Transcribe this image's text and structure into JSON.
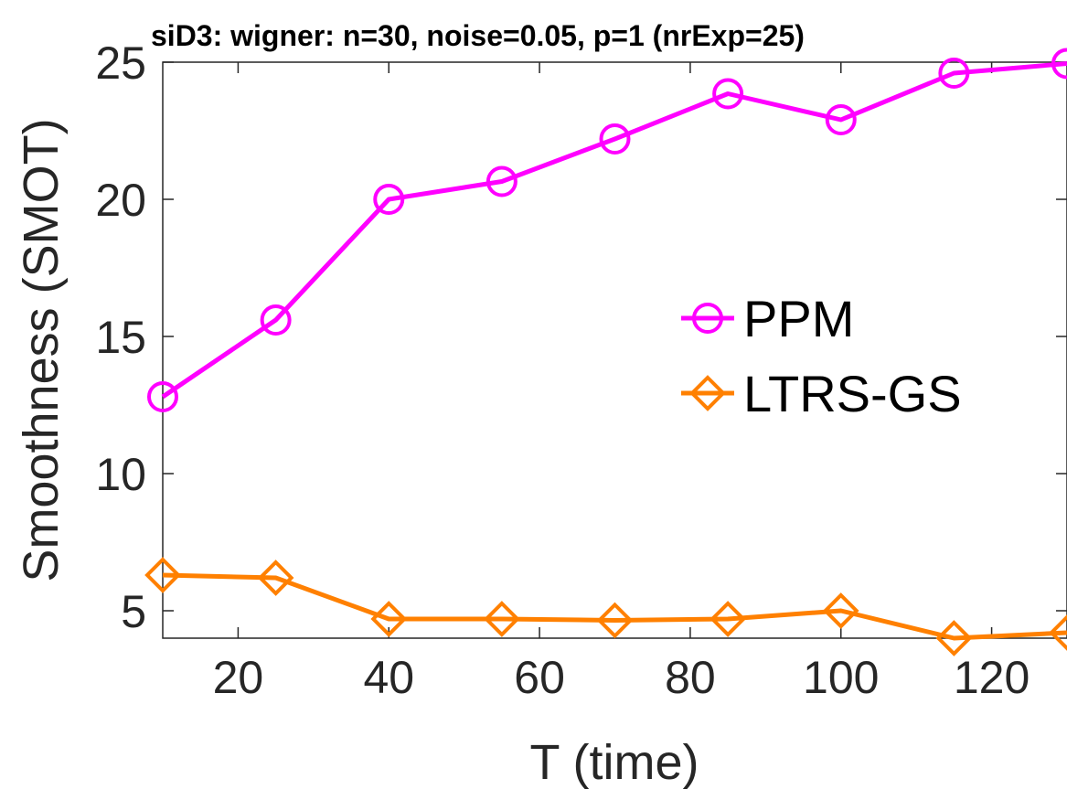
{
  "chart_data": {
    "type": "line",
    "title": "siD3: wigner: n=30, noise=0.05, p=1 (nrExp=25)",
    "xlabel": "T (time)",
    "ylabel": "Smoothness (SMOT)",
    "x": [
      10,
      25,
      40,
      55,
      70,
      85,
      100,
      115,
      130
    ],
    "xlim": [
      10,
      130
    ],
    "ylim": [
      4,
      25
    ],
    "xticks": [
      20,
      40,
      60,
      80,
      100,
      120
    ],
    "yticks": [
      5,
      10,
      15,
      20,
      25
    ],
    "grid": false,
    "legend_position": "center-right",
    "series": [
      {
        "name": "PPM",
        "color": "#ff00ff",
        "marker": "circle",
        "values": [
          12.8,
          15.6,
          20.0,
          20.65,
          22.2,
          23.85,
          22.9,
          24.6,
          24.95
        ]
      },
      {
        "name": "LTRS-GS",
        "color": "#ff8000",
        "marker": "diamond",
        "values": [
          6.3,
          6.2,
          4.7,
          4.7,
          4.65,
          4.7,
          5.0,
          4.0,
          4.2
        ]
      }
    ]
  }
}
